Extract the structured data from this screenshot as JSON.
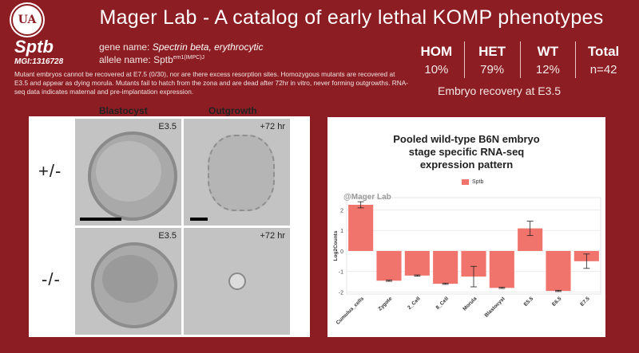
{
  "header": {
    "title": "Mager Lab - A catalog of early lethal KOMP phenotypes",
    "seal_text": "UA"
  },
  "gene": {
    "symbol": "Sptb",
    "mgi": "MGI:1316728",
    "gene_name_label": "gene name:",
    "gene_name_value": "Spectrin beta, erythrocytic",
    "allele_name_label": "allele name:",
    "allele_base": "Sptb",
    "allele_sup": "em1(IMPC)J"
  },
  "description": "Mutant embryos cannot be recovered at E7.5 (0/30), nor are there excess resorption sites. Homozygous mutants are recovered at E3.5 and appear as dying morula. Mutants fail to hatch from the zona and are dead after 72hr in vitro, never forming outgrowths. RNA-seq data indicates maternal and pre-implantation expression.",
  "genotype_table": {
    "headers": [
      "HOM",
      "HET",
      "WT",
      "Total"
    ],
    "values": [
      "10%",
      "79%",
      "12%",
      "n=42"
    ],
    "caption": "Embryo recovery at E3.5"
  },
  "images": {
    "col_blastocyst": "Blastocyst",
    "col_outgrowth": "Outgrowth",
    "row_het": "+/-",
    "row_hom": "-/-",
    "tag_e35": "E3.5",
    "tag_72": "+72 hr"
  },
  "chart_title_lines": [
    "Pooled wild-type B6N embryo",
    "stage specific RNA-seq",
    "expression pattern"
  ],
  "watermark": "@Mager Lab",
  "chart_data": {
    "type": "bar",
    "title": "Pooled wild-type B6N embryo stage specific RNA-seq expression pattern",
    "ylabel": "Log2Counts",
    "xlabel": "",
    "categories": [
      "Cumulus_cells",
      "Zygote",
      "2_Cell",
      "8_Cell",
      "Morula",
      "Blastocyst",
      "E5.5",
      "E6.5",
      "E7.5"
    ],
    "series": [
      {
        "name": "Sptb",
        "color": "#f0736c",
        "values": [
          2.25,
          -1.45,
          -1.2,
          -1.6,
          -1.25,
          -1.8,
          1.1,
          -1.95,
          -0.5
        ],
        "error": [
          0.15,
          0.03,
          0.03,
          0.03,
          0.5,
          0.03,
          0.35,
          0.03,
          0.35
        ]
      }
    ],
    "ylim": [
      -2.1,
      2.6
    ],
    "yticks": [
      2,
      1,
      0,
      -1,
      -2
    ],
    "grid": true,
    "legend": "top-center"
  }
}
